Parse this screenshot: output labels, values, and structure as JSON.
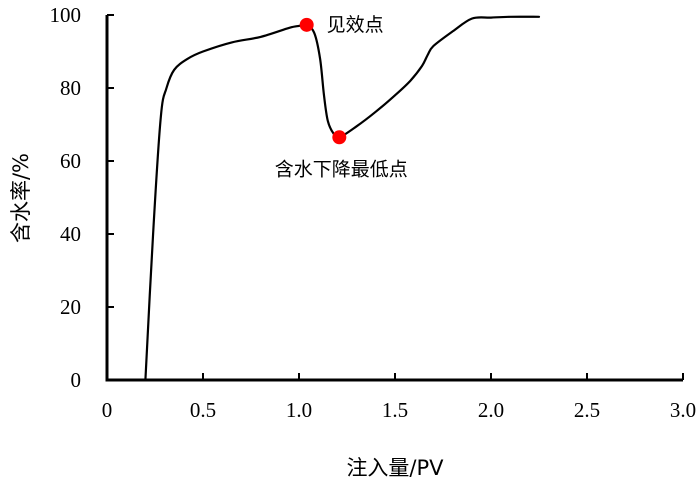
{
  "chart_data": {
    "type": "line",
    "title": "",
    "xlabel": "注入量/PV",
    "ylabel": "含水率/%",
    "xlim": [
      0,
      3.0
    ],
    "ylim": [
      0,
      100
    ],
    "grid": false,
    "legend": null,
    "x_ticks": [
      "0",
      "0.5",
      "1.0",
      "1.5",
      "2.0",
      "2.5",
      "3.0"
    ],
    "y_ticks": [
      "0",
      "20",
      "40",
      "60",
      "80",
      "100"
    ],
    "series": [
      {
        "name": "含水率",
        "color": "#000000",
        "x": [
          0.2,
          0.24,
          0.28,
          0.31,
          0.35,
          0.42,
          0.5,
          0.65,
          0.8,
          0.95,
          1.0,
          1.04,
          1.08,
          1.11,
          1.13,
          1.15,
          1.18,
          1.21,
          1.3,
          1.4,
          1.5,
          1.58,
          1.64,
          1.67,
          1.7,
          1.8,
          1.9,
          2.0,
          2.1,
          2.25
        ],
        "values": [
          0,
          40,
          72,
          80,
          85,
          88,
          90,
          92.5,
          94,
          96.5,
          97,
          97.3,
          95,
          88,
          78,
          71,
          67.5,
          66.5,
          69.5,
          73.5,
          78,
          82,
          86,
          89,
          91.5,
          95.5,
          99,
          99.3,
          99.5,
          99.5
        ]
      }
    ],
    "annotations": [
      {
        "label": "见效点",
        "x": 1.04,
        "y": 97.3,
        "marker_color": "#ff0000"
      },
      {
        "label": "含水下降最低点",
        "x": 1.21,
        "y": 66.5,
        "marker_color": "#ff0000"
      }
    ]
  }
}
